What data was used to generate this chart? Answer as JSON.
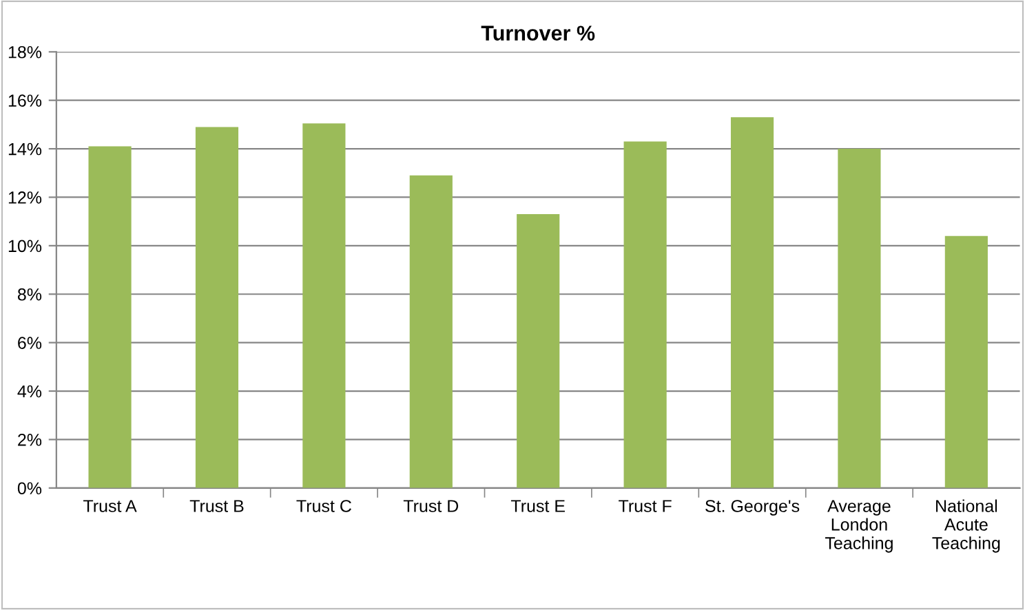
{
  "chart_data": {
    "type": "bar",
    "title": "Turnover %",
    "categories": [
      "Trust A",
      "Trust B",
      "Trust C",
      "Trust D",
      "Trust E",
      "Trust F",
      "St. George's",
      "Average\nLondon\nTeaching",
      "National\nAcute\nTeaching"
    ],
    "values": [
      14.1,
      14.9,
      15.05,
      12.9,
      11.3,
      14.3,
      15.3,
      14.0,
      10.4
    ],
    "color": "#9bbb59",
    "ylim": [
      0,
      18
    ],
    "yticks": [
      {
        "value": 0,
        "label": "0%"
      },
      {
        "value": 2,
        "label": "2%"
      },
      {
        "value": 4,
        "label": "4%"
      },
      {
        "value": 6,
        "label": "6%"
      },
      {
        "value": 8,
        "label": "8%"
      },
      {
        "value": 10,
        "label": "10%"
      },
      {
        "value": 12,
        "label": "12%"
      },
      {
        "value": 14,
        "label": "14%"
      },
      {
        "value": 16,
        "label": "16%"
      },
      {
        "value": 18,
        "label": "18%"
      }
    ],
    "grid": "y"
  }
}
